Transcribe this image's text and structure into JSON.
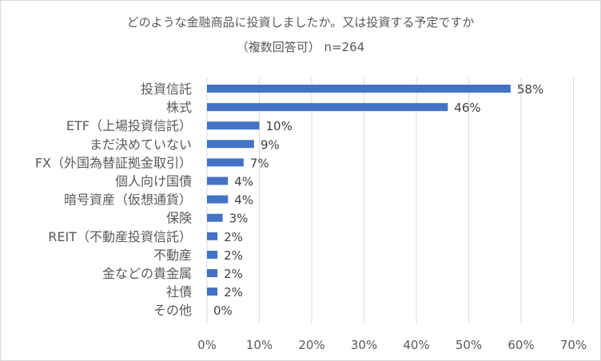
{
  "chart_data": {
    "type": "bar",
    "orientation": "horizontal",
    "title": "どのような金融商品に投資しましたか。又は投資する予定ですか",
    "subtitle": "（複数回答可） n=264",
    "categories": [
      "投資信託",
      "株式",
      "ETF（上場投資信託）",
      "まだ決めていない",
      "FX（外国為替証拠金取引）",
      "個人向け国債",
      "暗号資産（仮想通貨）",
      "保険",
      "REIT（不動産投資信託）",
      "不動産",
      "金などの貴金属",
      "社債",
      "その他"
    ],
    "values": [
      58,
      46,
      10,
      9,
      7,
      4,
      4,
      3,
      2,
      2,
      2,
      2,
      0
    ],
    "data_labels": [
      "58%",
      "46%",
      "10%",
      "9%",
      "7%",
      "4%",
      "4%",
      "3%",
      "2%",
      "2%",
      "2%",
      "2%",
      "0%"
    ],
    "xlim": [
      0,
      70
    ],
    "x_ticks": [
      0,
      10,
      20,
      30,
      40,
      50,
      60,
      70
    ],
    "x_tick_labels": [
      "0%",
      "10%",
      "20%",
      "30%",
      "40%",
      "50%",
      "60%",
      "70%"
    ],
    "xlabel": "",
    "ylabel": "",
    "grid": "vertical",
    "legend": "none",
    "bar_color": "#4472c4",
    "grid_color": "#d9d9d9"
  }
}
